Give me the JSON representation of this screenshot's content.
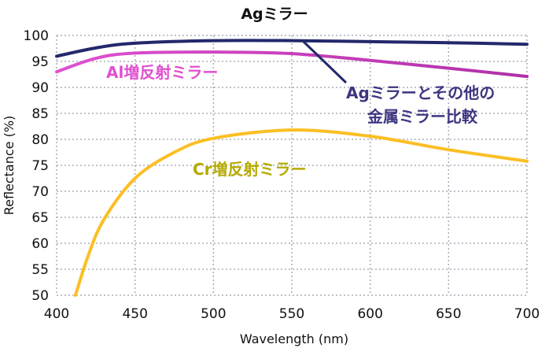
{
  "chart_data": {
    "type": "line",
    "title": "Agミラー",
    "xlabel": "Wavelength (nm)",
    "ylabel": "Reflectance (%)",
    "xlim": [
      400,
      700
    ],
    "ylim": [
      50,
      100
    ],
    "xticks": [
      400,
      450,
      500,
      550,
      600,
      650,
      700
    ],
    "yticks": [
      50,
      55,
      60,
      65,
      70,
      75,
      80,
      85,
      90,
      95,
      100
    ],
    "grid": true,
    "series": [
      {
        "name": "Agミラー",
        "color": "#23286b",
        "x": [
          400,
          425,
          450,
          500,
          550,
          600,
          650,
          700
        ],
        "y": [
          96.0,
          97.6,
          98.5,
          99.0,
          99.0,
          98.8,
          98.6,
          98.3
        ]
      },
      {
        "name": "Al増反射ミラー",
        "color": "#e050d0",
        "color_end": "#b030a8",
        "x": [
          400,
          425,
          450,
          500,
          550,
          600,
          650,
          700
        ],
        "y": [
          93.0,
          95.6,
          96.6,
          96.8,
          96.5,
          95.2,
          93.7,
          92.1
        ]
      },
      {
        "name": "Cr増反射ミラー",
        "color": "#fbbf24",
        "x": [
          412,
          420,
          430,
          450,
          475,
          500,
          550,
          600,
          650,
          700
        ],
        "y": [
          50,
          57.5,
          64.5,
          72.5,
          77.5,
          80.2,
          81.8,
          80.6,
          78.0,
          75.8
        ]
      }
    ],
    "annotations": [
      {
        "text": "Al増反射ミラー",
        "color": "#e050d0"
      },
      {
        "text": "Cr増反射ミラー",
        "color": "#b5aa00"
      },
      {
        "text_line1": "Agミラーとその他の",
        "text_line2": "金属ミラー比較",
        "color": "#3c3680"
      }
    ]
  }
}
